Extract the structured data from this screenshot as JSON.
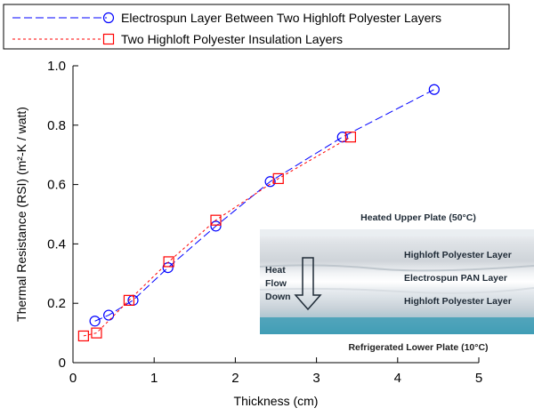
{
  "chart_data": {
    "type": "line",
    "xlabel": "Thickness (cm)",
    "ylabel": "Thermal Resistance (RSI)  (m²-K / watt)",
    "xlim": [
      0,
      5
    ],
    "ylim": [
      0,
      1.0
    ],
    "xticks": [
      "0",
      "1",
      "2",
      "3",
      "4",
      "5"
    ],
    "yticks": [
      "0",
      "0.2",
      "0.4",
      "0.6",
      "0.8",
      "1.0"
    ],
    "grid": false,
    "legend_position": "top",
    "series": [
      {
        "name": "Electrospun Layer Between Two Highloft Polyester Layers",
        "color": "#0000ff",
        "marker": "circle",
        "line_style": "dash",
        "x": [
          0.27,
          0.44,
          0.74,
          1.17,
          1.76,
          2.43,
          3.32,
          4.45
        ],
        "y": [
          0.14,
          0.16,
          0.21,
          0.32,
          0.46,
          0.61,
          0.76,
          0.92
        ]
      },
      {
        "name": "Two Highloft Polyester Insulation Layers",
        "color": "#ff0000",
        "marker": "square",
        "line_style": "dot",
        "x": [
          0.13,
          0.29,
          0.69,
          1.18,
          1.76,
          2.53,
          3.42
        ],
        "y": [
          0.09,
          0.1,
          0.21,
          0.34,
          0.48,
          0.62,
          0.76
        ]
      }
    ],
    "inset": {
      "top_label": "Heated Upper Plate (50°C)",
      "bottom_label": "Refrigerated Lower Plate (10°C)",
      "arrow_label": [
        "Heat",
        "Flow",
        "Down"
      ],
      "layer_labels": [
        "Highloft Polyester Layer",
        "Electrospun PAN Layer",
        "Highloft Polyester Layer"
      ]
    }
  }
}
